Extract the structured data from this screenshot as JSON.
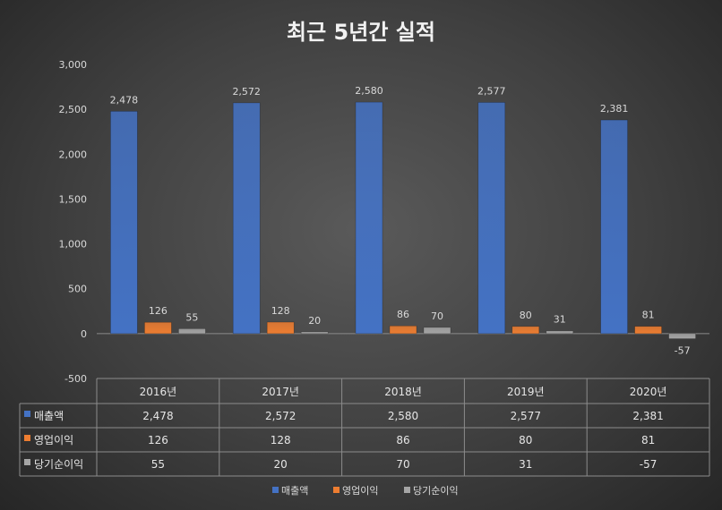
{
  "chart_data": {
    "type": "bar",
    "title": "최근 5년간 실적",
    "categories": [
      "2016년",
      "2017년",
      "2018년",
      "2019년",
      "2020년"
    ],
    "series": [
      {
        "name": "매출액",
        "values": [
          2478,
          2572,
          2580,
          2577,
          2381
        ],
        "color": "#4472c4"
      },
      {
        "name": "영업이익",
        "values": [
          126,
          128,
          86,
          80,
          81
        ],
        "color": "#ed7d31"
      },
      {
        "name": "당기순이익",
        "values": [
          55,
          20,
          70,
          31,
          -57
        ],
        "color": "#a5a5a5"
      }
    ],
    "data_labels": [
      [
        "2,478",
        "2,572",
        "2,580",
        "2,577",
        "2,381"
      ],
      [
        "126",
        "128",
        "86",
        "80",
        "81"
      ],
      [
        "55",
        "20",
        "70",
        "31",
        "-57"
      ]
    ],
    "ylim": [
      -500,
      3000
    ],
    "yticks": [
      3000,
      2500,
      2000,
      1500,
      1000,
      500,
      0,
      -500
    ],
    "ytick_labels": [
      "3,000",
      "2,500",
      "2,000",
      "1,500",
      "1,000",
      "500",
      "0",
      "-500"
    ],
    "xlabel": "",
    "ylabel": "",
    "legend_position": "bottom",
    "data_table": true
  }
}
